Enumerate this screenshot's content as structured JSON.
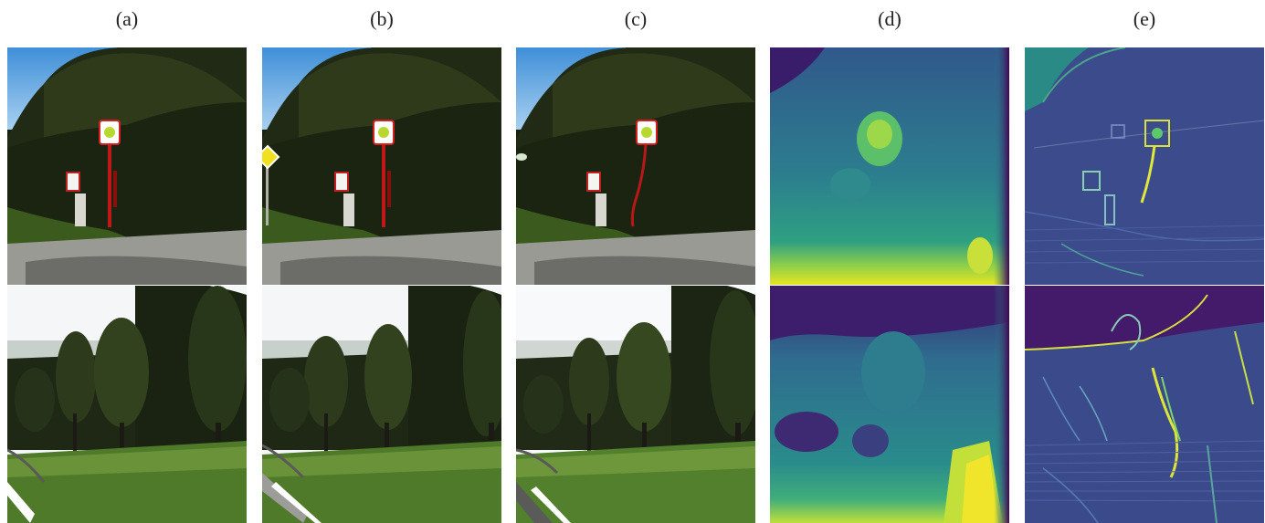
{
  "figure": {
    "columns": [
      {
        "label": "(a)"
      },
      {
        "label": "(b)"
      },
      {
        "label": "(c)"
      },
      {
        "label": "(d)"
      },
      {
        "label": "(e)"
      }
    ],
    "rows": [
      {
        "scene": "road-sign-hedge"
      },
      {
        "scene": "tree-row-meadow"
      }
    ],
    "colors": {
      "viridis_dark": "#440154",
      "viridis_mid": "#3b528b",
      "viridis_teal": "#21918c",
      "viridis_green": "#5ec962",
      "viridis_yellow": "#fde725"
    }
  }
}
